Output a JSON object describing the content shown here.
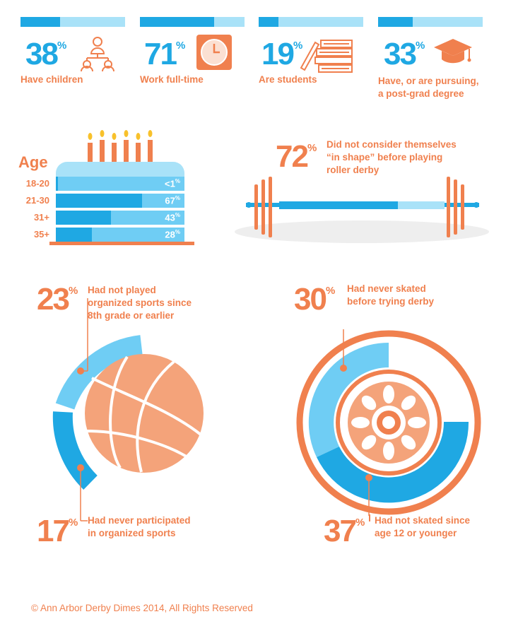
{
  "stats_top": [
    {
      "value": "38",
      "unit": "%",
      "label_lines": [
        "Have children"
      ],
      "fraction": 0.38,
      "icon": "family-icon"
    },
    {
      "value": "71",
      "unit": "%",
      "label_lines": [
        "Work full-time"
      ],
      "fraction": 0.71,
      "icon": "clock-icon"
    },
    {
      "value": "19",
      "unit": "%",
      "label_lines": [
        "Are students"
      ],
      "fraction": 0.19,
      "icon": "books-icon"
    },
    {
      "value": "33",
      "unit": "%",
      "label_lines": [
        "Have, or are pursuing,",
        "a post-grad degree"
      ],
      "fraction": 0.33,
      "icon": "graduation-cap-icon"
    }
  ],
  "age": {
    "title": "Age",
    "rows": [
      {
        "label": "18-20",
        "value": "<1",
        "unit": "%",
        "fraction": 0.01
      },
      {
        "label": "21-30",
        "value": "67",
        "unit": "%",
        "fraction": 0.67
      },
      {
        "label": "31+",
        "value": "43",
        "unit": "%",
        "fraction": 0.43
      },
      {
        "label": "35+",
        "value": "28",
        "unit": "%",
        "fraction": 0.28
      }
    ]
  },
  "fitness": {
    "value": "72",
    "unit": "%",
    "label_lines": [
      "Did not consider themselves",
      "“in shape” before playing",
      "roller derby"
    ],
    "fraction": 0.72
  },
  "sports": {
    "top": {
      "value": "23",
      "unit": "%",
      "label_lines": [
        "Had not played",
        "organized sports since",
        "8th grade or earlier"
      ],
      "fraction": 0.23
    },
    "bottom": {
      "value": "17",
      "unit": "%",
      "label_lines": [
        "Had never participated",
        "in organized sports"
      ],
      "fraction": 0.17
    }
  },
  "skating": {
    "top": {
      "value": "30",
      "unit": "%",
      "label_lines": [
        "Had never skated",
        "before trying derby"
      ],
      "fraction": 0.3
    },
    "bottom": {
      "value": "37",
      "unit": "%",
      "label_lines": [
        "Had not skated since",
        "age 12 or younger"
      ],
      "fraction": 0.37
    }
  },
  "footer": "© Ann Arbor Derby Dimes 2014, All Rights Reserved",
  "colors": {
    "orange": "#f0804e",
    "blue": "#1fa8e3",
    "light_blue": "#6fcdf4",
    "pale_blue": "#a9e2f8"
  }
}
